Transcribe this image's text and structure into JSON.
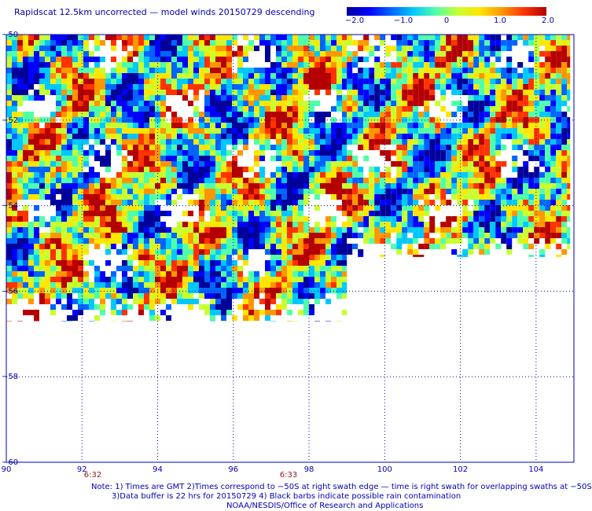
{
  "title": "Rapidscat 12.5km uncorrected — model winds 20150729 descending",
  "colorbar": {
    "ticks": [
      "−2.0",
      "−1.0",
      "0",
      "1.0",
      "2.0"
    ],
    "range": [
      -2.0,
      2.0
    ],
    "colors": [
      "#00009b",
      "#0000ff",
      "#0064ff",
      "#00c8ff",
      "#50ffaa",
      "#c8ff32",
      "#ffe600",
      "#ff9600",
      "#ff3200",
      "#b40000"
    ]
  },
  "map": {
    "x_ticks": [
      "90",
      "92",
      "94",
      "96",
      "98",
      "100",
      "102",
      "104"
    ],
    "y_ticks": [
      "−50",
      "−52",
      "−54",
      "−56",
      "−58",
      "−60"
    ],
    "lon_range": [
      90,
      105
    ],
    "lat_range": [
      -60,
      -50
    ],
    "grid_color": "#0000b4",
    "swaths": [
      {
        "lon_range": [
          90,
          99
        ],
        "lat_range": [
          -56.7,
          -50
        ]
      },
      {
        "lon_range": [
          99,
          104.9
        ],
        "lat_range": [
          -55.2,
          -50
        ]
      }
    ],
    "time_labels": [
      {
        "text": "6:32",
        "lon": 92.2
      },
      {
        "text": "6:33",
        "lon": 97.5
      }
    ]
  },
  "notes": [
    "Note: 1) Times are GMT 2)Times correspond to −50S at right swath edge — time is right swath for overlapping swaths at −50S",
    "3)Data buffer is 22 hrs for 20150729 4) Black barbs indicate possible rain contamination",
    "NOAA/NESDIS/Office of Research and Applications"
  ]
}
